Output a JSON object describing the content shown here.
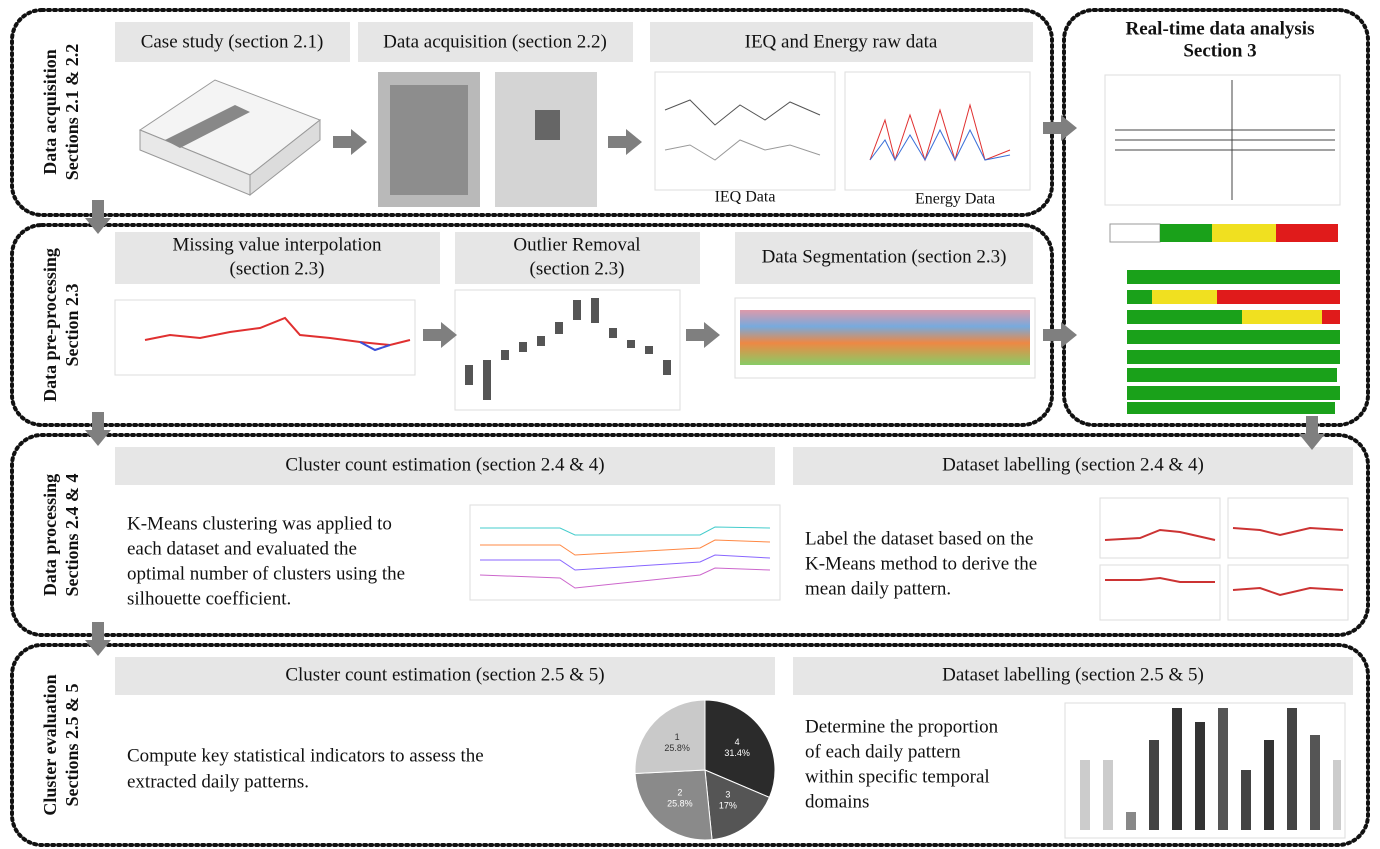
{
  "acquisition": {
    "side": [
      "Data acquisition",
      "Sections 2.1 & 2.2"
    ],
    "steps": [
      "Case study (section 2.1)",
      "Data acquisition (section 2.2)",
      "IEQ and Energy raw data"
    ],
    "captions": [
      "IEQ Data",
      "Energy Data"
    ]
  },
  "preprocessing": {
    "side": [
      "Data pre-processing",
      "Section 2.3"
    ],
    "steps": [
      [
        "Missing value interpolation",
        "(section 2.3)"
      ],
      [
        "Outlier Removal",
        "(section 2.3)"
      ],
      [
        "Data Segmentation (section 2.3)"
      ]
    ]
  },
  "realtime": {
    "title": [
      "Real-time data analysis",
      "Section 3"
    ]
  },
  "processing": {
    "side": [
      "Data processing",
      "Sections 2.4 & 4"
    ],
    "left": {
      "title": "Cluster count estimation (section 2.4 & 4)",
      "text": [
        "K-Means clustering was applied to",
        "each dataset and evaluated the",
        "optimal number of clusters using the",
        "silhouette coefficient."
      ]
    },
    "right": {
      "title": "Dataset labelling (section 2.4 & 4)",
      "text": [
        "Label the dataset based on the",
        "K-Means method to derive the",
        "mean daily pattern."
      ]
    }
  },
  "evaluation": {
    "side": [
      "Cluster evaluation",
      "Sections 2.5 & 5"
    ],
    "left": {
      "title": "Cluster count estimation (section 2.5 & 5)",
      "text": [
        "Compute key statistical indicators to assess the",
        "extracted daily patterns."
      ]
    },
    "right": {
      "title": "Dataset labelling (section 2.5 & 5)",
      "text": [
        "Determine the proportion",
        "of each daily pattern",
        "within specific temporal",
        "domains"
      ]
    },
    "pie": {
      "type": "pie",
      "categories": [
        "4",
        "3",
        "2",
        "1"
      ],
      "values": [
        31.4,
        17,
        25.8,
        25.8
      ],
      "value_labels": [
        "31.4%",
        "17%",
        "25.8%",
        "25.8%"
      ],
      "colors": [
        "#2b2b2b",
        "#555555",
        "#8a8a8a",
        "#c9c9c9"
      ]
    }
  }
}
